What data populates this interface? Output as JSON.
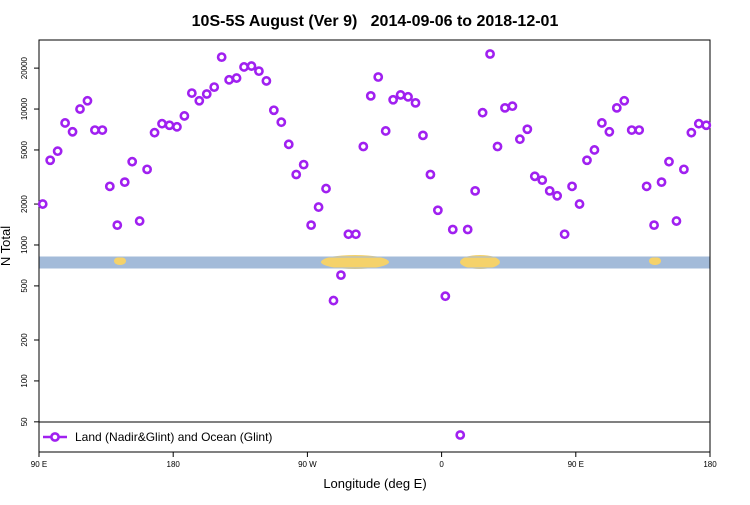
{
  "chart_data": {
    "type": "scatter",
    "title": "10S-5S August (Ver 9)   2014-09-06 to 2018-12-01",
    "x_label": "Longitude (deg E)",
    "y_label": "N Total",
    "xlim": [
      90,
      540
    ],
    "xticks": [
      {
        "value": 90,
        "label": "90 E"
      },
      {
        "value": 180,
        "label": "180"
      },
      {
        "value": 270,
        "label": "90 W"
      },
      {
        "value": 360,
        "label": "0"
      },
      {
        "value": 450,
        "label": "90 E"
      },
      {
        "value": 540,
        "label": "180"
      }
    ],
    "ylim": [
      30,
      32200
    ],
    "yticks": [
      50,
      100,
      200,
      500,
      1000,
      2000,
      5000,
      10000,
      20000
    ],
    "y_log": true,
    "legend": "bottomleft",
    "x": [
      92.5,
      97.5,
      102.5,
      107.5,
      112.5,
      117.5,
      122.5,
      127.5,
      132.5,
      137.5,
      142.5,
      147.5,
      152.5,
      157.5,
      162.5,
      167.5,
      172.5,
      177.5,
      182.5,
      187.5,
      192.5,
      197.5,
      202.5,
      207.5,
      212.5,
      217.5,
      222.5,
      227.5,
      232.5,
      237.5,
      242.5,
      247.5,
      252.5,
      257.5,
      262.5,
      267.5,
      272.5,
      277.5,
      282.5,
      287.5,
      292.5,
      297.5,
      302.5,
      307.5,
      312.5,
      317.5,
      322.5,
      327.5,
      332.5,
      337.5,
      342.5,
      347.5,
      352.5,
      357.5,
      362.5,
      367.5,
      372.5,
      377.5,
      382.5,
      387.5,
      392.5,
      397.5,
      402.5,
      407.5,
      412.5,
      417.5,
      422.5,
      427.5,
      432.5,
      437.5,
      442.5,
      447.5,
      452.5,
      457.5,
      462.5,
      467.5,
      472.5,
      477.5,
      482.5,
      487.5,
      492.5,
      497.5,
      502.5,
      507.5,
      512.5,
      517.5,
      522.5,
      527.5,
      532.5,
      537.5
    ],
    "series": [
      {
        "name": "Land (Nadir&Glint) and Ocean (Glint)",
        "color": "#a020f0",
        "values": [
          2000,
          4200,
          4900,
          7900,
          6800,
          10000,
          11500,
          7000,
          7000,
          2700,
          1400,
          2900,
          4100,
          1500,
          3600,
          6700,
          7800,
          7600,
          7400,
          8900,
          13100,
          11500,
          12900,
          14500,
          24100,
          16400,
          16900,
          20400,
          20700,
          19000,
          16100,
          9800,
          8000,
          5500,
          3300,
          3900,
          1400,
          1900,
          2600,
          390,
          600,
          1200,
          1200,
          5300,
          12500,
          17200,
          6900,
          11700,
          12700,
          12300,
          11100,
          6400,
          3300,
          1800,
          420,
          1300,
          40,
          1300,
          2500,
          9400,
          25400,
          5300,
          10200,
          10500,
          6000,
          7100,
          3200,
          3000,
          2500,
          2300,
          1200,
          2700,
          2000,
          4200,
          5000,
          7900,
          6800,
          10200,
          11500,
          7000,
          7000,
          2700,
          1400,
          2900,
          4100,
          1500,
          3600,
          6700,
          7800,
          7600
        ]
      }
    ]
  }
}
